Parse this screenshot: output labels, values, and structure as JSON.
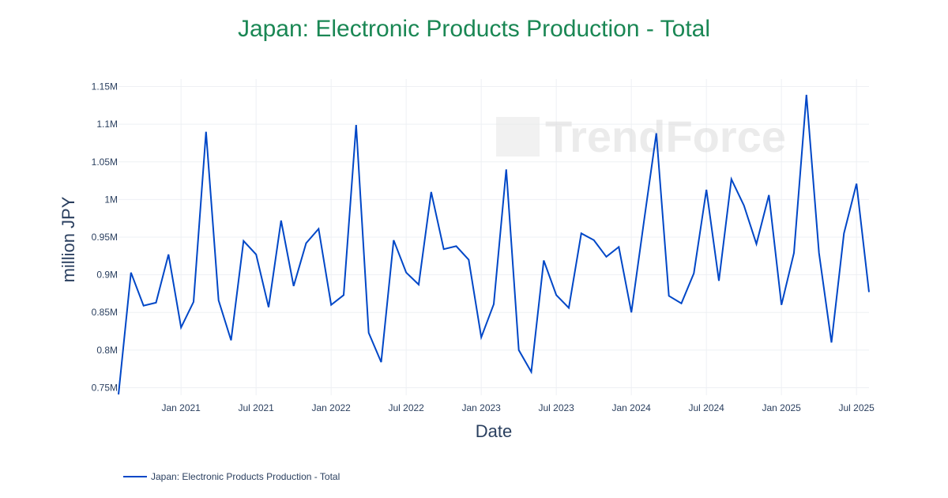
{
  "chart_data": {
    "type": "line",
    "title": "Japan: Electronic Products Production - Total",
    "xlabel": "Date",
    "ylabel": "million JPY",
    "x_ticks": [
      "Jan 2021",
      "Jul 2021",
      "Jan 2022",
      "Jul 2022",
      "Jan 2023",
      "Jul 2023",
      "Jan 2024",
      "Jul 2024",
      "Jan 2025",
      "Jul 2025"
    ],
    "y_ticks": [
      "0.75M",
      "0.8M",
      "0.85M",
      "0.9M",
      "0.95M",
      "1M",
      "1.05M",
      "1.1M",
      "1.15M"
    ],
    "ylim": [
      0.74,
      1.16
    ],
    "xlim": [
      "2020-08",
      "2025-08"
    ],
    "grid": true,
    "legend_position": "bottom-left",
    "watermark": "TrendForce",
    "color": "#0047c7",
    "series": [
      {
        "name": "Japan: Electronic Products Production - Total",
        "x": [
          "2020-08",
          "2020-09",
          "2020-10",
          "2020-11",
          "2020-12",
          "2021-01",
          "2021-02",
          "2021-03",
          "2021-04",
          "2021-05",
          "2021-06",
          "2021-07",
          "2021-08",
          "2021-09",
          "2021-10",
          "2021-11",
          "2021-12",
          "2022-01",
          "2022-02",
          "2022-03",
          "2022-04",
          "2022-05",
          "2022-06",
          "2022-07",
          "2022-08",
          "2022-09",
          "2022-10",
          "2022-11",
          "2022-12",
          "2023-01",
          "2023-02",
          "2023-03",
          "2023-04",
          "2023-05",
          "2023-06",
          "2023-07",
          "2023-08",
          "2023-09",
          "2023-10",
          "2023-11",
          "2023-12",
          "2024-01",
          "2024-02",
          "2024-03",
          "2024-04",
          "2024-05",
          "2024-06",
          "2024-07",
          "2024-08",
          "2024-09",
          "2024-10",
          "2024-11",
          "2024-12",
          "2025-01",
          "2025-02",
          "2025-03",
          "2025-04",
          "2025-05",
          "2025-06",
          "2025-07",
          "2025-08"
        ],
        "values": [
          0.741,
          0.903,
          0.859,
          0.863,
          0.927,
          0.83,
          0.864,
          1.09,
          0.866,
          0.813,
          0.945,
          0.927,
          0.857,
          0.972,
          0.885,
          0.942,
          0.961,
          0.86,
          0.873,
          1.099,
          0.823,
          0.784,
          0.946,
          0.903,
          0.887,
          1.01,
          0.934,
          0.938,
          0.92,
          0.817,
          0.861,
          1.04,
          0.8,
          0.771,
          0.919,
          0.873,
          0.856,
          0.955,
          0.946,
          0.924,
          0.937,
          0.85,
          0.97,
          1.088,
          0.872,
          0.862,
          0.902,
          1.013,
          0.892,
          1.027,
          0.992,
          0.941,
          1.006,
          0.86,
          0.929,
          1.139,
          0.929,
          0.81,
          0.955,
          1.021,
          0.877
        ]
      }
    ]
  }
}
